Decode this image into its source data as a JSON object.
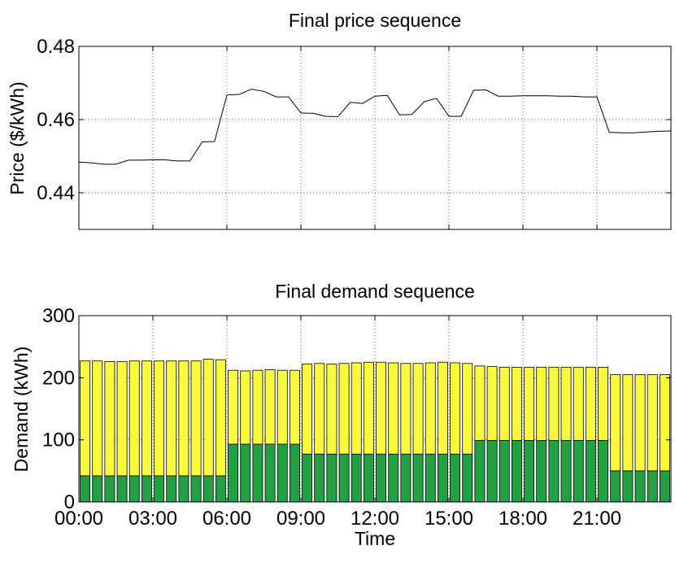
{
  "chart_data": [
    {
      "type": "line",
      "title": "Final price sequence",
      "xlabel": "",
      "ylabel": "Price ($/kWh)",
      "xlim": [
        0,
        48
      ],
      "ylim": [
        0.43,
        0.48
      ],
      "yticks": [
        0.44,
        0.46,
        0.48
      ],
      "ytick_labels": [
        "0.44",
        "0.46",
        "0.48"
      ],
      "xticks": [
        0,
        6,
        12,
        18,
        24,
        30,
        36,
        42
      ],
      "grid": true,
      "x": [
        0,
        1,
        2,
        3,
        4,
        5,
        6,
        7,
        8,
        9,
        10,
        11,
        12,
        13,
        14,
        15,
        16,
        17,
        18,
        19,
        20,
        21,
        22,
        23,
        24,
        25,
        26,
        27,
        28,
        29,
        30,
        31,
        32,
        33,
        34,
        35,
        36,
        37,
        38,
        39,
        40,
        41,
        42,
        43,
        44,
        45,
        46,
        47,
        48
      ],
      "series": [
        {
          "color": "#000000",
          "values": [
            0.4484,
            0.4482,
            0.4478,
            0.4478,
            0.4489,
            0.4489,
            0.449,
            0.449,
            0.4487,
            0.4487,
            0.4539,
            0.454,
            0.4667,
            0.4669,
            0.4683,
            0.4677,
            0.4662,
            0.4662,
            0.4618,
            0.4617,
            0.4609,
            0.4608,
            0.4647,
            0.4644,
            0.4664,
            0.4666,
            0.4613,
            0.4614,
            0.4649,
            0.4658,
            0.4609,
            0.4609,
            0.468,
            0.4681,
            0.4664,
            0.4664,
            0.4665,
            0.4665,
            0.4665,
            0.4664,
            0.4664,
            0.4662,
            0.4662,
            0.4565,
            0.4564,
            0.4564,
            0.4566,
            0.4568,
            0.4569
          ]
        }
      ]
    },
    {
      "type": "bar",
      "stacked": true,
      "title": "Final demand sequence",
      "xlabel": "Time",
      "ylabel": "Demand (kWh)",
      "xlim": [
        0,
        48
      ],
      "ylim": [
        0,
        300
      ],
      "yticks": [
        0,
        100,
        200,
        300
      ],
      "ytick_labels": [
        "0",
        "100",
        "200",
        "300"
      ],
      "xticks": [
        0,
        6,
        12,
        18,
        24,
        30,
        36,
        42
      ],
      "xtick_labels": [
        "00:00",
        "03:00",
        "06:00",
        "09:00",
        "12:00",
        "15:00",
        "18:00",
        "21:00"
      ],
      "grid": true,
      "series": [
        {
          "color": "#22a043",
          "values": [
            42,
            42,
            42,
            42,
            42,
            42,
            42,
            42,
            42,
            42,
            42,
            42,
            93,
            93,
            93,
            93,
            93,
            93,
            77,
            77,
            77,
            77,
            77,
            77,
            77,
            77,
            77,
            77,
            77,
            77,
            77,
            77,
            99,
            99,
            99,
            99,
            99,
            99,
            99,
            99,
            99,
            99,
            99,
            50,
            50,
            50,
            50,
            50
          ]
        },
        {
          "color": "#fafa3c",
          "values": [
            185,
            185,
            184,
            184,
            185,
            185,
            185,
            185,
            185,
            185,
            188,
            187,
            119,
            118,
            119,
            120,
            119,
            119,
            145,
            146,
            145,
            146,
            147,
            148,
            148,
            147,
            146,
            146,
            147,
            148,
            147,
            146,
            120,
            119,
            118,
            118,
            118,
            118,
            118,
            118,
            118,
            118,
            118,
            155,
            155,
            155,
            155,
            155
          ]
        }
      ]
    }
  ]
}
